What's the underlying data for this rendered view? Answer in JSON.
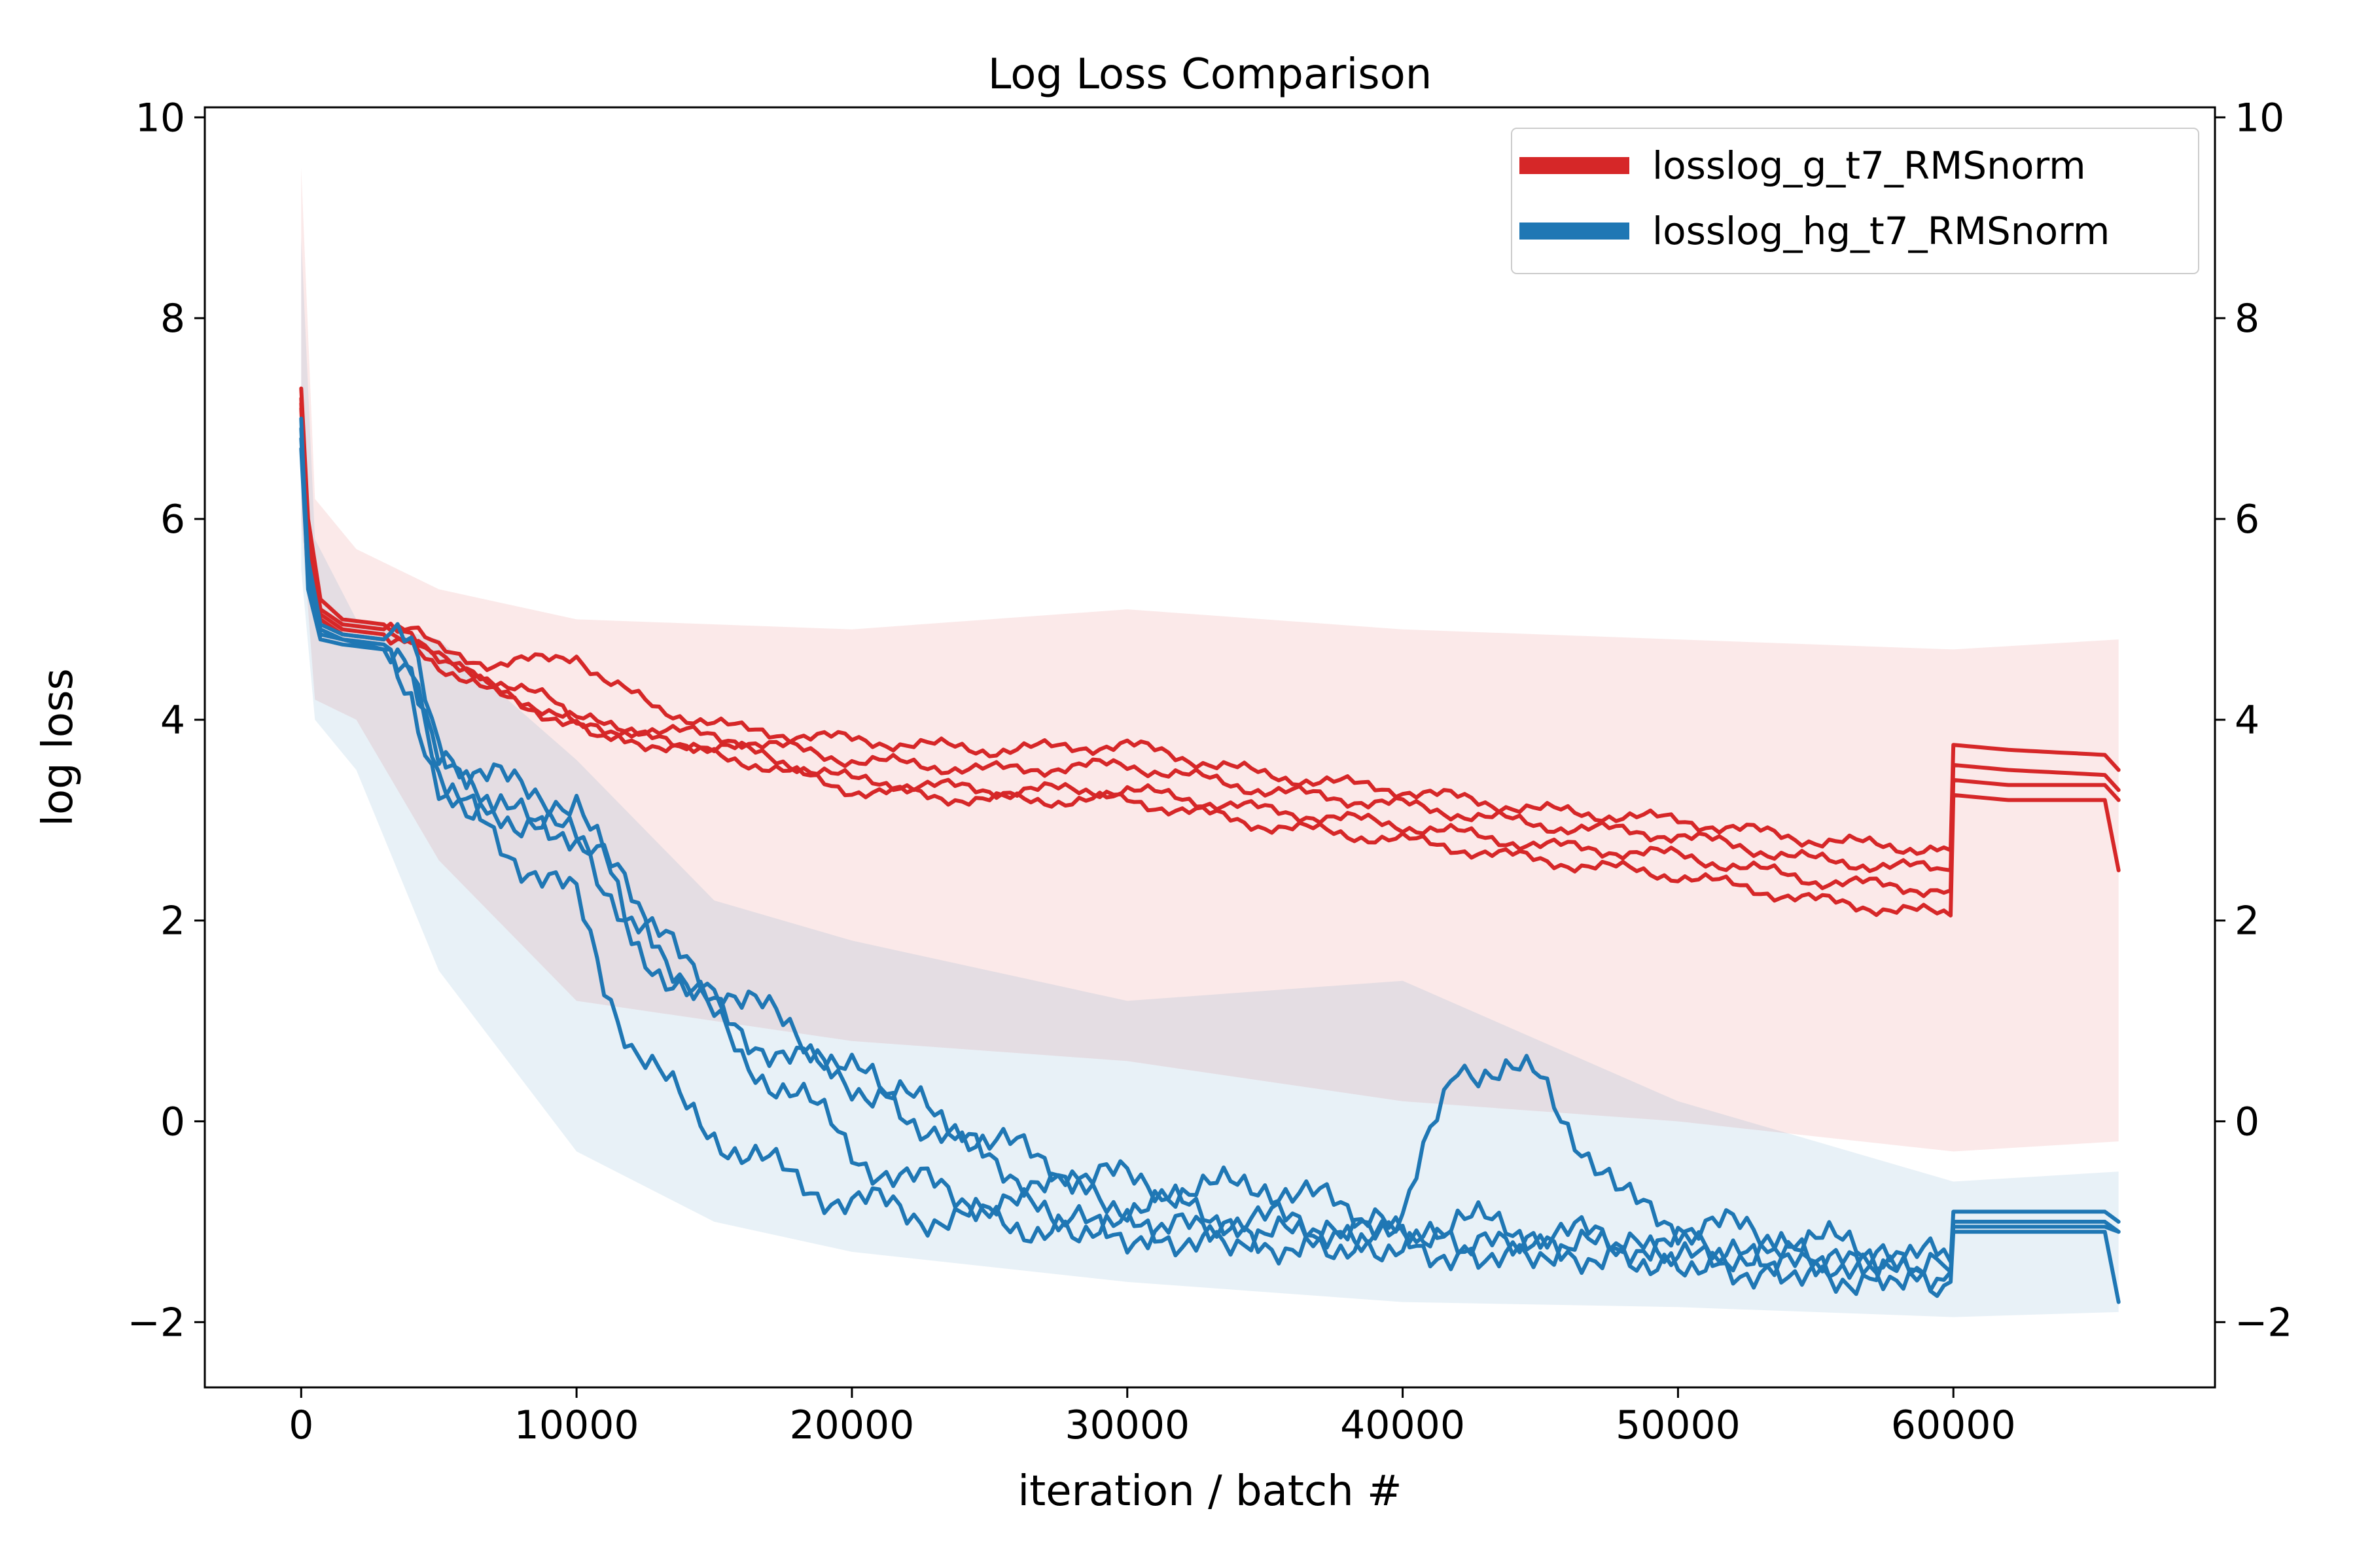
{
  "chart_data": {
    "type": "line",
    "title": "Log Loss Comparison",
    "xlabel": "iteration / batch #",
    "ylabel": "log loss",
    "xlim": [
      -3500,
      69500
    ],
    "ylim": [
      -2.65,
      10.1
    ],
    "x_ticks": [
      0,
      10000,
      20000,
      30000,
      40000,
      50000,
      60000
    ],
    "x_tick_labels": [
      "0",
      "10000",
      "20000",
      "30000",
      "40000",
      "50000",
      "60000"
    ],
    "y_ticks": [
      -2,
      0,
      2,
      4,
      6,
      8,
      10
    ],
    "y_tick_labels": [
      "−2",
      "0",
      "2",
      "4",
      "6",
      "8",
      "10"
    ],
    "right_axis_mirrored": true,
    "grid": false,
    "legend_position": "top-right",
    "series": [
      {
        "name": "losslog_g_t7_RMSnorm",
        "color": "#d62728",
        "runs": [
          {
            "x": [
              0,
              250,
              700,
              1500,
              3000,
              4000,
              5000,
              7000,
              9000,
              10000,
              11000,
              13000,
              16000,
              20000,
              25000,
              30000,
              35000,
              40000,
              45000,
              50000,
              55000,
              59900,
              60000,
              62000,
              65500,
              66000
            ],
            "y": [
              7.3,
              6.0,
              5.2,
              5.0,
              4.95,
              4.9,
              4.7,
              4.55,
              4.6,
              4.65,
              4.4,
              4.1,
              3.9,
              3.8,
              3.7,
              3.75,
              3.45,
              3.3,
              3.1,
              3.0,
              2.8,
              2.7,
              3.75,
              3.7,
              3.65,
              3.5
            ]
          },
          {
            "x": [
              0,
              250,
              700,
              1500,
              3000,
              4000,
              5000,
              7000,
              9000,
              10000,
              11000,
              13000,
              16000,
              20000,
              25000,
              30000,
              35000,
              40000,
              45000,
              50000,
              55000,
              59900,
              60000,
              62000,
              65500,
              66000
            ],
            "y": [
              7.2,
              5.9,
              5.1,
              4.95,
              4.9,
              4.85,
              4.65,
              4.3,
              4.1,
              4.0,
              3.95,
              3.9,
              3.8,
              3.6,
              3.5,
              3.55,
              3.3,
              3.15,
              2.95,
              2.85,
              2.6,
              2.5,
              3.55,
              3.5,
              3.45,
              3.3
            ]
          },
          {
            "x": [
              0,
              250,
              700,
              1500,
              3000,
              4000,
              5000,
              7000,
              9000,
              10000,
              11000,
              13000,
              16000,
              20000,
              25000,
              30000,
              35000,
              40000,
              45000,
              50000,
              55000,
              59900,
              60000,
              62000,
              65500,
              66000
            ],
            "y": [
              7.15,
              5.8,
              5.05,
              4.9,
              4.85,
              4.8,
              4.6,
              4.4,
              4.2,
              4.0,
              3.85,
              3.8,
              3.7,
              3.4,
              3.3,
              3.3,
              3.1,
              2.95,
              2.75,
              2.65,
              2.4,
              2.3,
              3.4,
              3.35,
              3.35,
              3.2
            ]
          },
          {
            "x": [
              0,
              250,
              700,
              1500,
              3000,
              4000,
              5000,
              7000,
              9000,
              10000,
              11000,
              13000,
              16000,
              20000,
              25000,
              30000,
              35000,
              40000,
              45000,
              50000,
              55000,
              59900,
              60000,
              62000,
              65500,
              66000
            ],
            "y": [
              7.1,
              5.7,
              5.0,
              4.85,
              4.8,
              4.75,
              4.55,
              4.25,
              4.05,
              3.95,
              3.85,
              3.75,
              3.6,
              3.3,
              3.2,
              3.2,
              2.95,
              2.8,
              2.6,
              2.45,
              2.2,
              2.05,
              3.25,
              3.2,
              3.2,
              2.5
            ]
          }
        ],
        "band_upper": [
          [
            0,
            9.5
          ],
          [
            500,
            6.2
          ],
          [
            2000,
            5.7
          ],
          [
            5000,
            5.3
          ],
          [
            10000,
            5.0
          ],
          [
            20000,
            4.9
          ],
          [
            30000,
            5.1
          ],
          [
            40000,
            4.9
          ],
          [
            50000,
            4.8
          ],
          [
            60000,
            4.7
          ],
          [
            66000,
            4.8
          ]
        ],
        "band_lower": [
          [
            0,
            6.0
          ],
          [
            500,
            4.2
          ],
          [
            2000,
            4.0
          ],
          [
            5000,
            2.6
          ],
          [
            10000,
            1.2
          ],
          [
            20000,
            0.8
          ],
          [
            30000,
            0.6
          ],
          [
            40000,
            0.2
          ],
          [
            50000,
            0.0
          ],
          [
            60000,
            -0.3
          ],
          [
            66000,
            -0.2
          ]
        ]
      },
      {
        "name": "losslog_hg_t7_RMSnorm",
        "color": "#1f77b4",
        "runs": [
          {
            "x": [
              0,
              250,
              700,
              1500,
              3000,
              4000,
              5000,
              6000,
              8000,
              10000,
              11000,
              12000,
              14000,
              16000,
              18000,
              20000,
              22000,
              25000,
              28000,
              30000,
              33000,
              35000,
              38000,
              40000,
              42000,
              45000,
              48000,
              50000,
              55000,
              59900,
              60000,
              62000,
              65500,
              66000
            ],
            "y": [
              6.8,
              5.6,
              4.95,
              4.85,
              4.8,
              4.7,
              3.8,
              3.5,
              3.3,
              3.2,
              2.6,
              1.8,
              1.3,
              0.9,
              0.6,
              0.4,
              0.2,
              -0.2,
              -0.5,
              -0.6,
              -0.7,
              -0.6,
              -0.9,
              -1.0,
              0.6,
              0.4,
              -0.8,
              -1.0,
              -1.2,
              -1.4,
              -0.9,
              -0.9,
              -0.9,
              -1.0
            ]
          },
          {
            "x": [
              0,
              250,
              700,
              1500,
              3000,
              4000,
              5000,
              6000,
              8000,
              10000,
              11000,
              12000,
              14000,
              16000,
              18000,
              20000,
              22000,
              25000,
              28000,
              30000,
              33000,
              35000,
              38000,
              40000,
              42000,
              45000,
              48000,
              50000,
              55000,
              59900,
              60000,
              62000,
              65500,
              66000
            ],
            "y": [
              6.9,
              5.5,
              4.9,
              4.8,
              4.75,
              4.6,
              3.6,
              3.3,
              3.0,
              2.8,
              2.4,
              2.0,
              1.6,
              1.2,
              0.9,
              0.5,
              0.1,
              -0.4,
              -0.7,
              -0.8,
              -0.9,
              -1.0,
              -1.05,
              -1.1,
              -1.0,
              -1.1,
              -1.2,
              -1.25,
              -1.35,
              -1.5,
              -1.0,
              -1.0,
              -1.0,
              -1.1
            ]
          },
          {
            "x": [
              0,
              250,
              700,
              1500,
              3000,
              4000,
              5000,
              6000,
              8000,
              10000,
              11000,
              12000,
              14000,
              16000,
              18000,
              20000,
              22000,
              25000,
              28000,
              30000,
              33000,
              35000,
              38000,
              40000,
              42000,
              45000,
              48000,
              50000,
              55000,
              59900,
              60000,
              62000,
              65500,
              66000
            ],
            "y": [
              6.7,
              5.4,
              4.85,
              4.8,
              4.7,
              4.4,
              3.4,
              3.2,
              3.0,
              2.9,
              2.6,
              2.2,
              1.4,
              0.6,
              0.3,
              -0.3,
              -0.6,
              -0.8,
              -1.0,
              -1.1,
              -1.15,
              -1.2,
              -1.2,
              -1.2,
              -1.25,
              -1.3,
              -1.3,
              -1.35,
              -1.45,
              -1.5,
              -1.05,
              -1.05,
              -1.05,
              -1.1
            ]
          },
          {
            "x": [
              0,
              250,
              700,
              1500,
              3000,
              4000,
              5000,
              6000,
              8000,
              10000,
              11000,
              12000,
              14000,
              16000,
              18000,
              20000,
              22000,
              25000,
              28000,
              30000,
              33000,
              35000,
              38000,
              40000,
              42000,
              45000,
              48000,
              50000,
              55000,
              59900,
              60000,
              62000,
              65500,
              66000
            ],
            "y": [
              7.0,
              5.3,
              4.8,
              4.75,
              4.7,
              4.3,
              3.3,
              3.1,
              2.6,
              2.2,
              1.4,
              0.8,
              0.1,
              -0.3,
              -0.6,
              -0.8,
              -0.9,
              -1.0,
              -1.05,
              -1.1,
              -1.1,
              -1.15,
              -1.2,
              -1.2,
              -1.3,
              -1.25,
              -1.3,
              -1.4,
              -1.5,
              -1.6,
              -1.1,
              -1.1,
              -1.1,
              -1.8
            ]
          }
        ],
        "band_upper": [
          [
            0,
            8.8
          ],
          [
            500,
            5.8
          ],
          [
            2000,
            5.0
          ],
          [
            5000,
            4.8
          ],
          [
            10000,
            3.6
          ],
          [
            15000,
            2.2
          ],
          [
            20000,
            1.8
          ],
          [
            30000,
            1.2
          ],
          [
            40000,
            1.4
          ],
          [
            50000,
            0.2
          ],
          [
            60000,
            -0.6
          ],
          [
            66000,
            -0.5
          ]
        ],
        "band_lower": [
          [
            0,
            5.5
          ],
          [
            500,
            4.0
          ],
          [
            2000,
            3.5
          ],
          [
            5000,
            1.5
          ],
          [
            10000,
            -0.3
          ],
          [
            15000,
            -1.0
          ],
          [
            20000,
            -1.3
          ],
          [
            30000,
            -1.6
          ],
          [
            40000,
            -1.8
          ],
          [
            50000,
            -1.85
          ],
          [
            60000,
            -1.95
          ],
          [
            66000,
            -1.9
          ]
        ]
      }
    ]
  }
}
